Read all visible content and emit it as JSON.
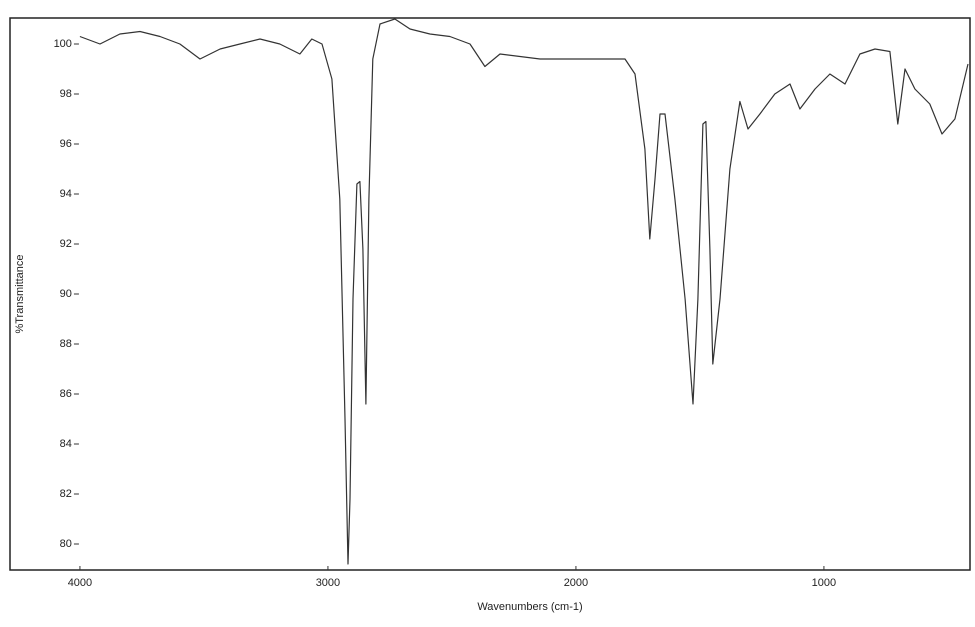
{
  "chart_data": {
    "type": "line",
    "x_label": "Wavenumbers (cm-1)",
    "y_label": "%Transmittance",
    "xlim": [
      4282,
      411
    ],
    "ylim": [
      79,
      101
    ],
    "xticks": [
      4000,
      3000,
      2000,
      1000
    ],
    "yticks": [
      80,
      82,
      84,
      86,
      88,
      90,
      92,
      94,
      96,
      98,
      100
    ],
    "x": [
      4000,
      3919,
      3839,
      3758,
      3677,
      3597,
      3516,
      3435,
      3355,
      3274,
      3194,
      3113,
      3065,
      3024,
      2984,
      2952,
      2931,
      2919,
      2911,
      2899,
      2883,
      2871,
      2859,
      2847,
      2835,
      2819,
      2790,
      2730,
      2669,
      2589,
      2508,
      2427,
      2367,
      2306,
      2145,
      1984,
      1802,
      1762,
      1722,
      1702,
      1681,
      1661,
      1641,
      1601,
      1560,
      1528,
      1508,
      1488,
      1476,
      1460,
      1448,
      1419,
      1379,
      1339,
      1306,
      1258,
      1198,
      1137,
      1097,
      1036,
      976,
      915,
      855,
      794,
      734,
      702,
      673,
      633,
      573,
      524,
      472,
      419
    ],
    "series": [
      {
        "name": "%Transmittance",
        "color": "#333333",
        "values": [
          100.3,
          100.0,
          100.4,
          100.5,
          100.3,
          100.0,
          99.4,
          99.8,
          100.0,
          100.2,
          100.0,
          99.6,
          100.2,
          100.0,
          98.6,
          93.8,
          85.0,
          79.2,
          81.8,
          89.8,
          94.4,
          94.5,
          91.8,
          85.6,
          93.8,
          99.4,
          100.8,
          101.0,
          100.6,
          100.4,
          100.3,
          100.0,
          99.1,
          99.6,
          99.4,
          99.4,
          99.4,
          98.8,
          95.8,
          92.2,
          94.6,
          97.2,
          97.2,
          93.8,
          89.8,
          85.6,
          89.8,
          96.8,
          96.9,
          91.8,
          87.2,
          89.8,
          95.0,
          97.7,
          96.6,
          97.2,
          98.0,
          98.4,
          97.4,
          98.2,
          98.8,
          98.4,
          99.6,
          99.8,
          99.7,
          96.8,
          99.0,
          98.2,
          97.6,
          96.4,
          97.0,
          99.2
        ]
      }
    ]
  }
}
